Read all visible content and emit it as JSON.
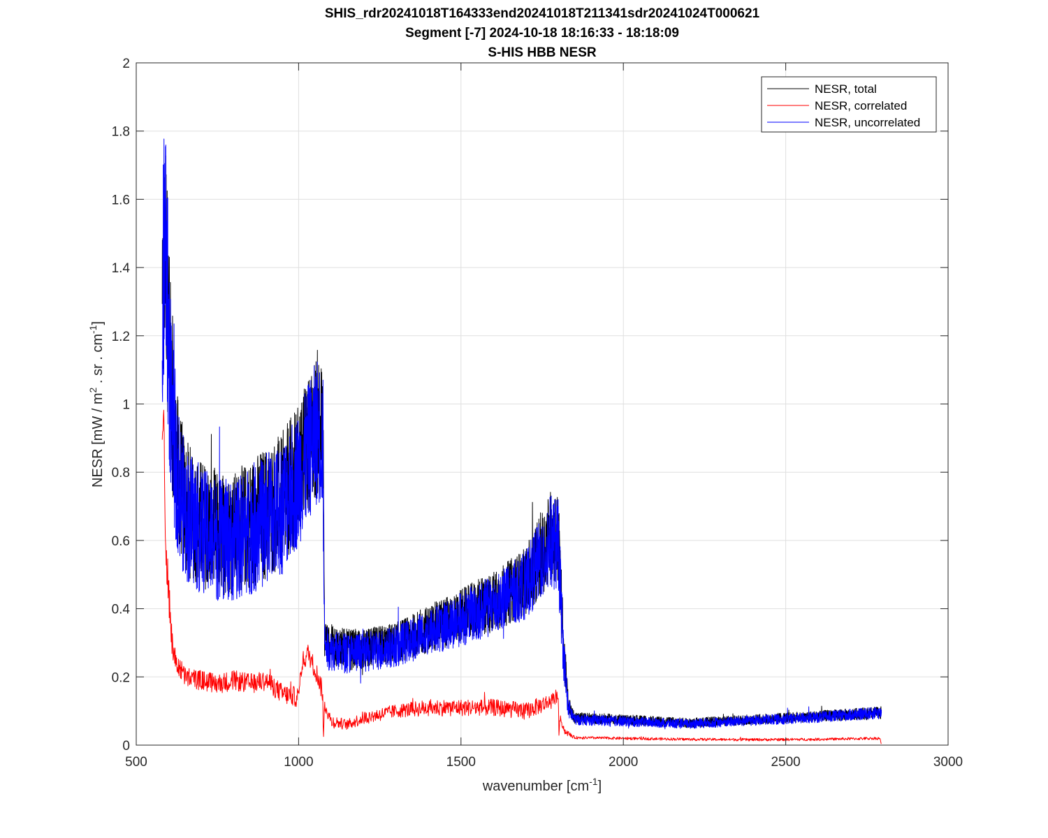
{
  "chart_data": {
    "type": "line",
    "title_lines": [
      "SHIS_rdr20241018T164333end20241018T211341sdr20241024T000621",
      "Segment [-7] 2024-10-18 18:16:33 - 18:18:09",
      "S-HIS HBB NESR"
    ],
    "xlabel_text": "wavenumber [cm",
    "xlabel_sup": "-1",
    "xlabel_close": "]",
    "ylabel_parts": [
      "NESR [mW / m",
      "2",
      " . sr . cm",
      "-1",
      "]"
    ],
    "xlim": [
      500,
      3000
    ],
    "ylim": [
      0,
      2
    ],
    "x_ticks": [
      500,
      1000,
      1500,
      2000,
      2500,
      3000
    ],
    "x_tick_labels": [
      "500",
      "1000",
      "1500",
      "2000",
      "2500",
      "3000"
    ],
    "y_ticks": [
      0,
      0.2,
      0.4,
      0.6,
      0.8,
      1.0,
      1.2,
      1.4,
      1.6,
      1.8,
      2.0
    ],
    "y_tick_labels": [
      "0",
      "0.2",
      "0.4",
      "0.6",
      "0.8",
      "1",
      "1.2",
      "1.4",
      "1.6",
      "1.8",
      "2"
    ],
    "grid": true,
    "legend_position": "top-right",
    "series": [
      {
        "name": "NESR, total",
        "color": "#000000",
        "note": "approximate envelope profile read from the figure (mean level)",
        "x": [
          580,
          590,
          600,
          620,
          650,
          700,
          750,
          800,
          850,
          900,
          950,
          1000,
          1030,
          1060,
          1075,
          1080,
          1090,
          1150,
          1200,
          1300,
          1400,
          1500,
          1600,
          1700,
          1780,
          1800,
          1815,
          1830,
          1850,
          2000,
          2200,
          2400,
          2600,
          2795
        ],
        "y": [
          1.2,
          1.5,
          1.2,
          0.85,
          0.7,
          0.65,
          0.62,
          0.62,
          0.65,
          0.68,
          0.72,
          0.8,
          0.88,
          0.95,
          0.9,
          0.32,
          0.3,
          0.28,
          0.28,
          0.3,
          0.34,
          0.38,
          0.42,
          0.48,
          0.62,
          0.6,
          0.3,
          0.12,
          0.08,
          0.075,
          0.065,
          0.075,
          0.085,
          0.095
        ],
        "spread": [
          0.3,
          0.35,
          0.3,
          0.22,
          0.2,
          0.19,
          0.18,
          0.18,
          0.19,
          0.2,
          0.2,
          0.2,
          0.2,
          0.22,
          0.2,
          0.07,
          0.06,
          0.06,
          0.06,
          0.06,
          0.07,
          0.08,
          0.09,
          0.1,
          0.14,
          0.14,
          0.08,
          0.03,
          0.016,
          0.015,
          0.014,
          0.015,
          0.016,
          0.018
        ]
      },
      {
        "name": "NESR, correlated",
        "color": "#ff0000",
        "note": "approximate profile read from the figure",
        "x": [
          580,
          585,
          590,
          600,
          610,
          620,
          650,
          700,
          750,
          800,
          850,
          900,
          950,
          1000,
          1010,
          1030,
          1060,
          1075,
          1076,
          1080,
          1100,
          1150,
          1200,
          1300,
          1400,
          1500,
          1600,
          1700,
          1780,
          1800,
          1801,
          1805,
          1820,
          1850,
          2000,
          2200,
          2400,
          2600,
          2790,
          2795
        ],
        "y": [
          0.9,
          0.98,
          0.6,
          0.45,
          0.3,
          0.25,
          0.2,
          0.19,
          0.18,
          0.19,
          0.18,
          0.19,
          0.15,
          0.14,
          0.24,
          0.27,
          0.2,
          0.15,
          0.0,
          0.12,
          0.07,
          0.06,
          0.08,
          0.1,
          0.11,
          0.11,
          0.11,
          0.1,
          0.13,
          0.15,
          0.02,
          0.08,
          0.04,
          0.022,
          0.02,
          0.017,
          0.016,
          0.017,
          0.02,
          0.0
        ],
        "spread": [
          0.02,
          0.02,
          0.08,
          0.06,
          0.04,
          0.035,
          0.03,
          0.03,
          0.03,
          0.03,
          0.03,
          0.03,
          0.03,
          0.03,
          0.03,
          0.03,
          0.03,
          0.03,
          0,
          0.02,
          0.02,
          0.015,
          0.02,
          0.02,
          0.025,
          0.025,
          0.025,
          0.025,
          0.025,
          0.02,
          0,
          0.01,
          0.01,
          0.004,
          0.004,
          0.004,
          0.004,
          0.004,
          0.004,
          0
        ]
      },
      {
        "name": "NESR, uncorrelated",
        "color": "#0000ff",
        "note": "approximate envelope profile read from the figure (mean level)",
        "x": [
          580,
          590,
          600,
          620,
          650,
          700,
          750,
          800,
          850,
          900,
          950,
          1000,
          1030,
          1060,
          1075,
          1080,
          1090,
          1150,
          1200,
          1300,
          1400,
          1500,
          1600,
          1700,
          1780,
          1800,
          1815,
          1830,
          1850,
          2000,
          2200,
          2400,
          2600,
          2795
        ],
        "y": [
          1.25,
          1.55,
          1.15,
          0.82,
          0.68,
          0.63,
          0.6,
          0.6,
          0.63,
          0.66,
          0.7,
          0.78,
          0.86,
          0.93,
          0.88,
          0.3,
          0.28,
          0.27,
          0.27,
          0.29,
          0.33,
          0.37,
          0.41,
          0.47,
          0.6,
          0.58,
          0.28,
          0.11,
          0.075,
          0.07,
          0.062,
          0.072,
          0.082,
          0.095
        ],
        "spread": [
          0.35,
          0.4,
          0.32,
          0.22,
          0.2,
          0.19,
          0.18,
          0.18,
          0.19,
          0.2,
          0.2,
          0.2,
          0.2,
          0.22,
          0.2,
          0.07,
          0.06,
          0.06,
          0.06,
          0.06,
          0.07,
          0.08,
          0.09,
          0.1,
          0.14,
          0.14,
          0.08,
          0.03,
          0.016,
          0.015,
          0.014,
          0.015,
          0.016,
          0.018
        ]
      }
    ]
  }
}
